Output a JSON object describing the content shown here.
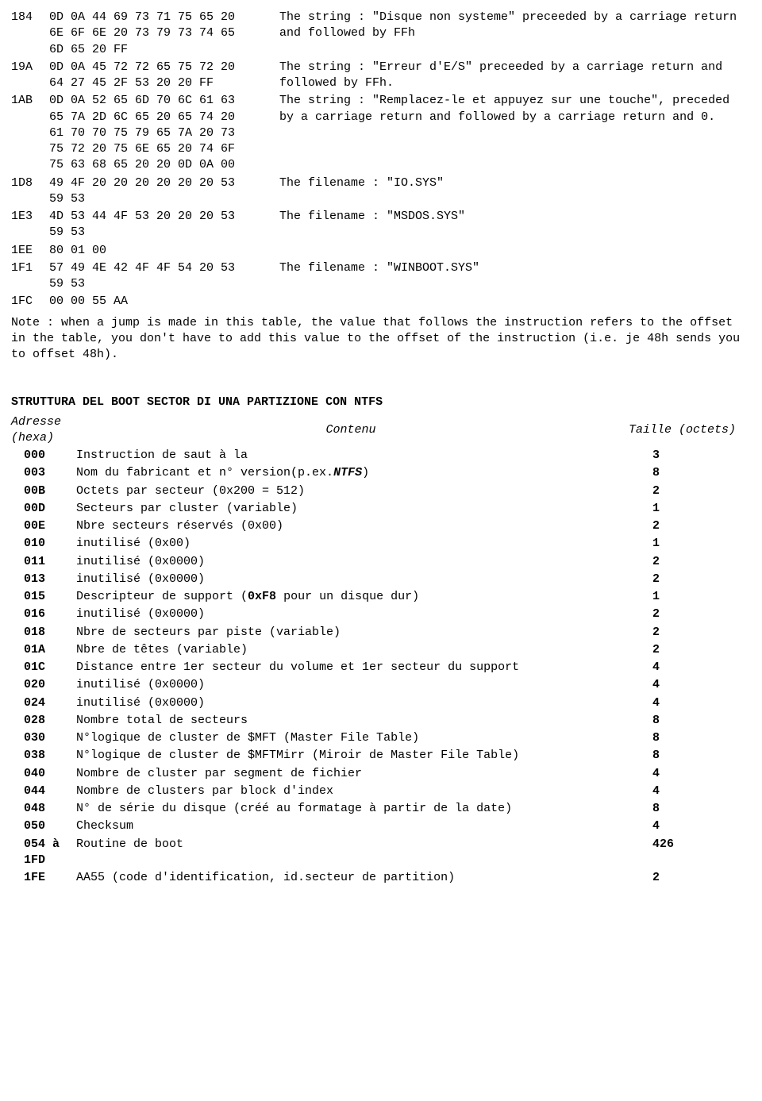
{
  "disasm": [
    {
      "addr": "184",
      "hex": "0D 0A 44 69 73 71 75 65 20 6E 6F 6E 20 73 79 73 74 65 6D 65 20 FF",
      "desc": "The string : \"Disque non systeme\" preceeded by a carriage return and followed by FFh"
    },
    {
      "addr": "19A",
      "hex": "0D 0A 45 72 72 65 75 72 20 64 27 45 2F 53 20 20 FF",
      "desc": "The string : \"Erreur d'E/S\" preceeded by a carriage return and followed by FFh."
    },
    {
      "addr": "1AB",
      "hex": "0D 0A 52 65 6D 70 6C 61 63 65 7A 2D 6C 65 20 65 74 20 61 70 70 75 79 65 7A 20 73 75 72 20 75 6E 65 20 74 6F 75 63 68 65 20 20 0D 0A 00",
      "desc": "The string : \"Remplacez-le et appuyez sur une touche\", preceded by a carriage return and followed by a carriage return and 0."
    },
    {
      "addr": "1D8",
      "hex": "49 4F 20 20 20 20 20 20 53 59 53",
      "desc": "The filename : \"IO.SYS\""
    },
    {
      "addr": "1E3",
      "hex": "4D 53 44 4F 53 20 20 20 53 59 53",
      "desc": "The filename : \"MSDOS.SYS\""
    },
    {
      "addr": "1EE",
      "hex": "80 01 00",
      "desc": ""
    },
    {
      "addr": "1F1",
      "hex": "57 49 4E 42 4F 4F 54 20 53 59 53",
      "desc": "The filename : \"WINBOOT.SYS\""
    },
    {
      "addr": "1FC",
      "hex": "00 00 55 AA",
      "desc": ""
    }
  ],
  "note": "Note : when a jump is made in this table, the value that follows the instruction refers to the offset in the table, you don't have to add this value to the offset of the instruction (i.e. je 48h sends you to offset 48h).",
  "section_title": "STRUTTURA DEL BOOT SECTOR DI UNA PARTIZIONE CON NTFS",
  "ntfs_headers": {
    "addr": "Adresse (hexa)",
    "cont": "Contenu",
    "size": "Taille (octets)"
  },
  "ntfs": [
    {
      "addr": "000",
      "cont": "Instruction de saut à la",
      "size": "3"
    },
    {
      "addr": "003",
      "cont_html": "Nom du fabricant et n° version(p.ex.<span class=\"em\">NTFS</span>)",
      "size": "8"
    },
    {
      "addr": "00B",
      "cont": "Octets par secteur (0x200 = 512)",
      "size": "2"
    },
    {
      "addr": "00D",
      "cont": "Secteurs par cluster (variable)",
      "size": "1"
    },
    {
      "addr": "00E",
      "cont": "Nbre secteurs réservés (0x00)",
      "size": "2"
    },
    {
      "addr": "010",
      "cont": "inutilisé (0x00)",
      "size": "1"
    },
    {
      "addr": "011",
      "cont": "inutilisé (0x0000)",
      "size": "2"
    },
    {
      "addr": "013",
      "cont": "inutilisé (0x0000)",
      "size": "2"
    },
    {
      "addr": "015",
      "cont_html": "Descripteur de support (<span class=\"bold\">0xF8</span> pour un disque dur)",
      "size": "1"
    },
    {
      "addr": "016",
      "cont": "inutilisé (0x0000)",
      "size": "2"
    },
    {
      "addr": "018",
      "cont": "Nbre de secteurs par piste (variable)",
      "size": "2"
    },
    {
      "addr": "01A",
      "cont": "Nbre de têtes (variable)",
      "size": "2"
    },
    {
      "addr": "01C",
      "cont": "Distance entre 1er secteur du volume et 1er secteur du support",
      "size": "4"
    },
    {
      "addr": "020",
      "cont": "inutilisé (0x0000)",
      "size": "4"
    },
    {
      "addr": "024",
      "cont": "inutilisé (0x0000)",
      "size": "4"
    },
    {
      "addr": "028",
      "cont": "Nombre total de secteurs",
      "size": "8"
    },
    {
      "addr": "030",
      "cont": "N°logique de cluster de $MFT (Master File Table)",
      "size": "8"
    },
    {
      "addr": "038",
      "cont": "N°logique de cluster de $MFTMirr (Miroir de Master File Table)",
      "size": "8"
    },
    {
      "addr": "040",
      "cont": "Nombre de cluster par segment de fichier",
      "size": "4"
    },
    {
      "addr": "044",
      "cont": "Nombre de clusters par block d'index",
      "size": "4"
    },
    {
      "addr": "048",
      "cont": "N° de série du disque (créé au formatage à partir de la date)",
      "size": "8"
    },
    {
      "addr": "050",
      "cont": "Checksum",
      "size": "4"
    },
    {
      "addr": "054 à 1FD",
      "cont": "Routine de boot",
      "size": "426"
    },
    {
      "addr": "1FE",
      "cont": "AA55 (code d'identification, id.secteur de partition)",
      "size": "2"
    }
  ]
}
